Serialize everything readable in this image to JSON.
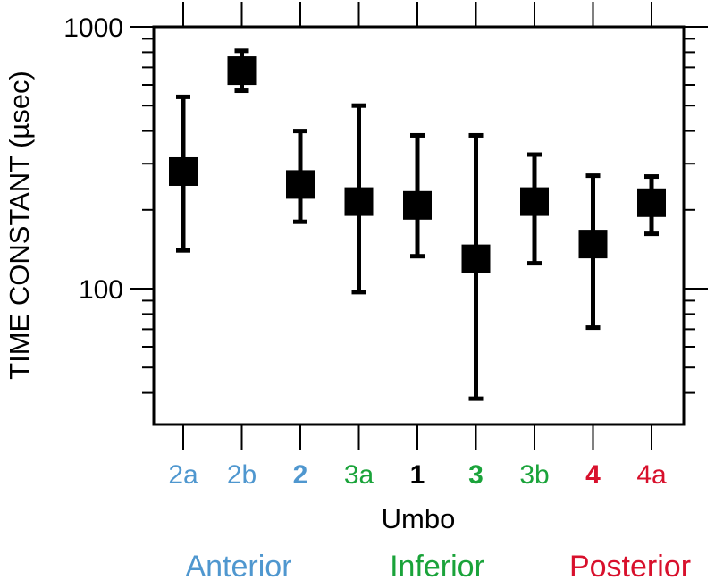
{
  "chart_data": {
    "type": "scatter",
    "y_scale": "log",
    "ylim": [
      30,
      1000
    ],
    "ylabel": "TIME CONSTANT (µsec)",
    "xlabel": "Umbo",
    "y_tick_labels": [
      {
        "value": 100,
        "label": "100"
      },
      {
        "value": 1000,
        "label": "1000"
      }
    ],
    "categories": [
      "2a",
      "2b",
      "2",
      "3a",
      "1",
      "3",
      "3b",
      "4",
      "4a"
    ],
    "category_colors": [
      "#4f97cf",
      "#4f97cf",
      "#4f97cf",
      "#1aa33a",
      "#000000",
      "#1aa33a",
      "#1aa33a",
      "#d8102c",
      "#d8102c"
    ],
    "category_bold": [
      false,
      false,
      true,
      false,
      true,
      true,
      false,
      true,
      false
    ],
    "series": [
      {
        "values": [
          280,
          680,
          250,
          215,
          208,
          130,
          215,
          148,
          213
        ],
        "lower": [
          140,
          570,
          180,
          97,
          133,
          38,
          125,
          71,
          162
        ],
        "upper": [
          540,
          810,
          400,
          500,
          385,
          385,
          325,
          270,
          268
        ]
      }
    ],
    "groups": [
      {
        "label": "Anterior",
        "color": "#4f97cf"
      },
      {
        "label": "Inferior",
        "color": "#1aa33a"
      },
      {
        "label": "Posterior",
        "color": "#d8102c"
      }
    ],
    "grid": false
  }
}
